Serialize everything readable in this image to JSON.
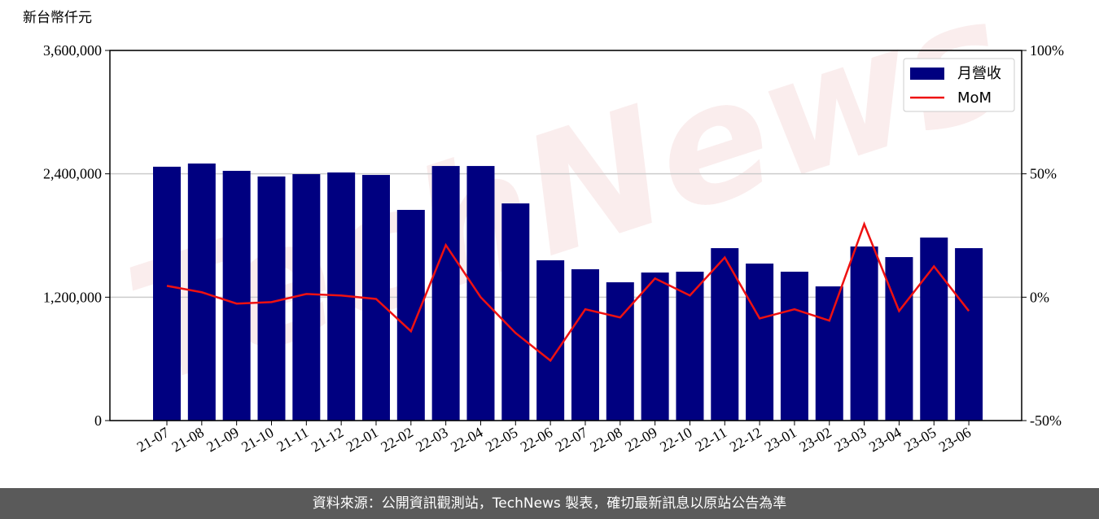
{
  "chart_data": {
    "type": "bar",
    "y_label": "新台幣仟元",
    "watermark": "TechNews",
    "categories": [
      "21-07",
      "21-08",
      "21-09",
      "21-10",
      "21-11",
      "21-12",
      "22-01",
      "22-02",
      "22-03",
      "22-04",
      "22-05",
      "22-06",
      "22-07",
      "22-08",
      "22-09",
      "22-10",
      "22-11",
      "22-12",
      "23-01",
      "23-02",
      "23-03",
      "23-04",
      "23-05",
      "23-06"
    ],
    "series": [
      {
        "name": "月營收",
        "color": "#000080",
        "type": "bar",
        "values": [
          2469000,
          2500000,
          2429000,
          2374000,
          2397000,
          2413000,
          2389000,
          2049000,
          2476000,
          2476000,
          2112000,
          1559000,
          1472000,
          1345000,
          1440000,
          1448000,
          1677000,
          1527000,
          1448000,
          1305000,
          1693000,
          1590000,
          1780000,
          1677000
        ]
      },
      {
        "name": "MoM",
        "color": "#ee1111",
        "type": "line",
        "axis": "y2",
        "values": [
          4.6,
          2.0,
          -2.6,
          -2.0,
          1.3,
          0.7,
          -0.7,
          -13.8,
          21.1,
          0.0,
          -14.5,
          -25.7,
          -4.9,
          -8.2,
          7.6,
          0.7,
          16.1,
          -8.6,
          -4.9,
          -9.5,
          29.6,
          -5.6,
          12.5,
          -5.6
        ]
      }
    ],
    "ylim": [
      0,
      3600000
    ],
    "yticks": [
      0,
      {
        "value": 1200000,
        "label": "1,200,000"
      },
      {
        "value": 2400000,
        "label": "2,400,000"
      },
      {
        "value": 3600000,
        "label": "3,600,000"
      }
    ],
    "y2lim": [
      -50,
      100
    ],
    "y2ticks": [
      {
        "value": -50,
        "label": "-50%"
      },
      {
        "value": 0,
        "label": "0%"
      },
      {
        "value": 50,
        "label": "50%"
      },
      {
        "value": 100,
        "label": "100%"
      }
    ],
    "grid": true,
    "legend": "upper right"
  },
  "footer": "資料來源：公開資訊觀測站，TechNews 製表，確切最新訊息以原站公告為準"
}
